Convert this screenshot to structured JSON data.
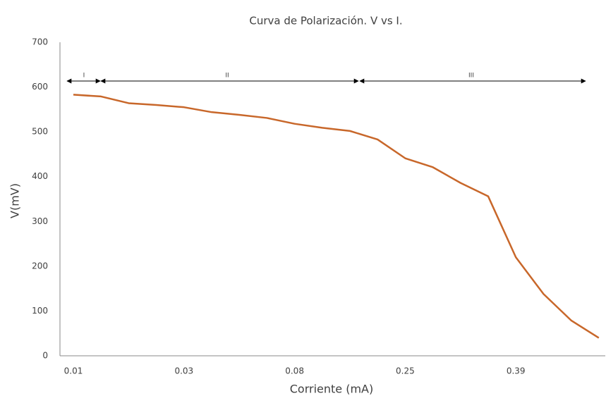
{
  "chart_data": {
    "type": "line",
    "title": "Curva de Polarización. V vs I.",
    "x_label": "Corriente (mA)",
    "y_label": "V(mV)",
    "categories": [
      "0.01",
      null,
      null,
      null,
      "0.03",
      null,
      null,
      null,
      "0.08",
      null,
      null,
      null,
      "0.25",
      null,
      null,
      null,
      "0.39",
      null,
      null,
      null
    ],
    "series": [
      {
        "name": "V",
        "color": "#c8672a",
        "values": [
          583,
          579,
          564,
          560,
          555,
          544,
          538,
          531,
          518,
          509,
          502,
          483,
          441,
          421,
          386,
          356,
          220,
          138,
          79,
          40
        ]
      }
    ],
    "ylim": [
      0,
      700
    ],
    "yticks": [
      0,
      100,
      200,
      300,
      400,
      500,
      600,
      700
    ],
    "grid": false,
    "annotations": [
      "I",
      "II",
      "III"
    ]
  }
}
